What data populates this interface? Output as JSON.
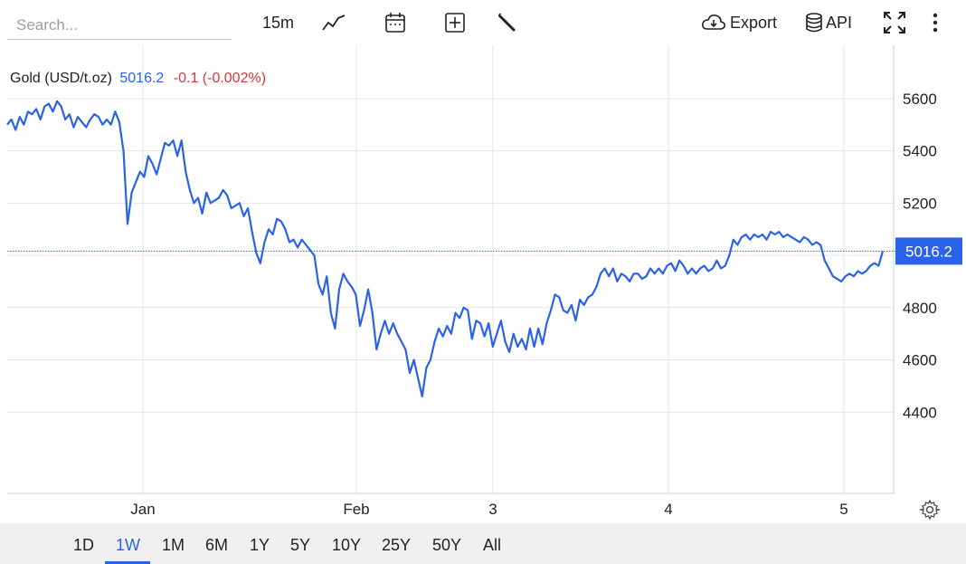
{
  "toolbar": {
    "search_placeholder": "Search...",
    "interval_label": "15m",
    "chart_type_icon": "line-chart-icon",
    "calendar_icon": "calendar-icon",
    "add_indicator_icon": "plus-box-icon",
    "settings_icon": "wrench-icon",
    "export_label": "Export",
    "api_label": "API",
    "fullscreen_icon": "expand-icon",
    "more_icon": "kebab-menu-icon"
  },
  "legend": {
    "name": "Gold (USD/t.oz)",
    "price": "5016.2",
    "change": "-0.1 (-0.002%)"
  },
  "range_buttons": [
    "1D",
    "1W",
    "1M",
    "6M",
    "1Y",
    "5Y",
    "10Y",
    "25Y",
    "50Y",
    "All"
  ],
  "active_range": "1W",
  "colors": {
    "line": "#2b62ea",
    "change_negative": "#d9383a",
    "grid": "#e6e6e6"
  },
  "chart_data": {
    "type": "line",
    "series": [
      {
        "name": "Gold (USD/t.oz)",
        "values": [
          5500,
          5520,
          5480,
          5530,
          5500,
          5550,
          5540,
          5560,
          5520,
          5570,
          5580,
          5550,
          5590,
          5570,
          5520,
          5540,
          5490,
          5530,
          5510,
          5490,
          5520,
          5540,
          5530,
          5500,
          5520,
          5500,
          5550,
          5510,
          5400,
          5120,
          5240,
          5280,
          5320,
          5300,
          5380,
          5350,
          5310,
          5370,
          5430,
          5420,
          5440,
          5380,
          5440,
          5320,
          5250,
          5200,
          5220,
          5160,
          5240,
          5200,
          5210,
          5220,
          5250,
          5230,
          5180,
          5190,
          5200,
          5150,
          5180,
          5090,
          5010,
          4970,
          5050,
          5100,
          5080,
          5140,
          5130,
          5100,
          5050,
          5060,
          5030,
          5060,
          5040,
          5020,
          5000,
          4890,
          4850,
          4920,
          4780,
          4720,
          4870,
          4930,
          4900,
          4880,
          4850,
          4730,
          4790,
          4870,
          4780,
          4640,
          4700,
          4750,
          4700,
          4740,
          4700,
          4670,
          4640,
          4550,
          4600,
          4530,
          4460,
          4570,
          4600,
          4670,
          4720,
          4690,
          4730,
          4700,
          4780,
          4760,
          4800,
          4790,
          4680,
          4750,
          4740,
          4690,
          4740,
          4650,
          4700,
          4750,
          4670,
          4630,
          4700,
          4650,
          4680,
          4640,
          4720,
          4650,
          4720,
          4660,
          4740,
          4790,
          4850,
          4840,
          4790,
          4780,
          4810,
          4750,
          4830,
          4810,
          4840,
          4850,
          4880,
          4930,
          4950,
          4920,
          4950,
          4900,
          4930,
          4920,
          4900,
          4930,
          4930,
          4910,
          4920,
          4950,
          4930,
          4950,
          4930,
          4960,
          4970,
          4940,
          4980,
          4960,
          4930,
          4950,
          4930,
          4950,
          4960,
          4940,
          4950,
          4980,
          4950,
          4960,
          5000,
          5060,
          5040,
          5070,
          5080,
          5060,
          5080,
          5070,
          5080,
          5060,
          5090,
          5080,
          5090,
          5070,
          5080,
          5070,
          5060,
          5050,
          5070,
          5060,
          5040,
          5050,
          5040,
          4980,
          4950,
          4920,
          4910,
          4900,
          4920,
          4930,
          4920,
          4940,
          4930,
          4940,
          4960,
          4970,
          4960,
          5016.2
        ]
      }
    ],
    "x_ticks": [
      "Jan",
      "Feb",
      "3",
      "4",
      "5"
    ],
    "y_ticks": [
      4400,
      4600,
      4800,
      5000,
      5200,
      5400,
      5600
    ],
    "ylim": [
      4200,
      5700
    ],
    "last_value_label": "5016.2",
    "grid": true
  }
}
